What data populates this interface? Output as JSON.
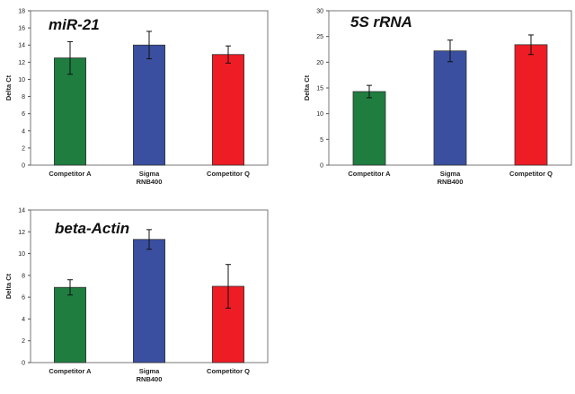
{
  "chart_data": [
    {
      "type": "bar",
      "title": "miR-21",
      "ylabel": "Delta Ct",
      "ylim": [
        0,
        18
      ],
      "yticks": [
        0,
        2,
        4,
        6,
        8,
        10,
        12,
        14,
        16,
        18
      ],
      "categories": [
        [
          "Competitor A"
        ],
        [
          "Sigma",
          "RNB400"
        ],
        [
          "Competitor Q"
        ]
      ],
      "values": [
        12.5,
        14.0,
        12.9
      ],
      "errors": [
        1.9,
        1.6,
        1.0
      ],
      "colors": [
        "#1e7d3f",
        "#3a4fa0",
        "#ee1c25"
      ],
      "grid": false,
      "legend": "none"
    },
    {
      "type": "bar",
      "title": "5S rRNA",
      "ylabel": "Delta Ct",
      "ylim": [
        0,
        30
      ],
      "yticks": [
        0,
        5,
        10,
        15,
        20,
        25,
        30
      ],
      "categories": [
        [
          "Competitor A"
        ],
        [
          "Sigma",
          "RNB400"
        ],
        [
          "Competitor Q"
        ]
      ],
      "values": [
        14.3,
        22.2,
        23.4
      ],
      "errors": [
        1.2,
        2.1,
        1.9
      ],
      "colors": [
        "#1e7d3f",
        "#3a4fa0",
        "#ee1c25"
      ],
      "grid": false,
      "legend": "none"
    },
    {
      "type": "bar",
      "title": "beta-Actin",
      "ylabel": "Delta Ct",
      "ylim": [
        0,
        14
      ],
      "yticks": [
        0,
        2,
        4,
        6,
        8,
        10,
        12,
        14
      ],
      "categories": [
        [
          "Competitor A"
        ],
        [
          "Sigma",
          "RNB400"
        ],
        [
          "Competitor Q"
        ]
      ],
      "values": [
        6.9,
        11.3,
        7.0
      ],
      "errors": [
        0.7,
        0.9,
        2.0
      ],
      "colors": [
        "#1e7d3f",
        "#3a4fa0",
        "#ee1c25"
      ],
      "grid": false,
      "legend": "none"
    }
  ]
}
